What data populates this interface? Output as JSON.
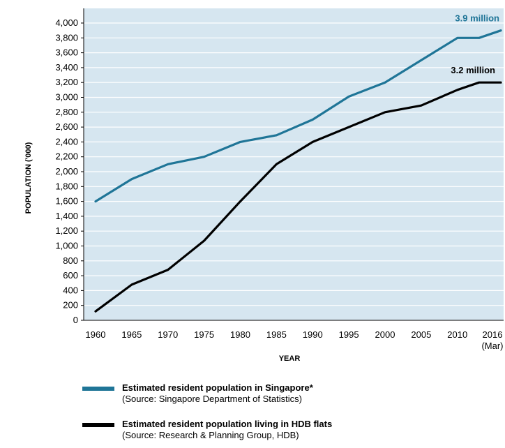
{
  "chart_data": {
    "type": "line",
    "title": "",
    "xlabel": "YEAR",
    "ylabel": "POPULATION ('000)",
    "ylim": [
      0,
      4000
    ],
    "y_ticks": [
      "0",
      "200",
      "400",
      "600",
      "800",
      "1,000",
      "1,200",
      "1,400",
      "1,600",
      "1,800",
      "2,000",
      "2,200",
      "2,400",
      "2,600",
      "2,800",
      "3,000",
      "3,200",
      "3,400",
      "3,600",
      "3,800",
      "4,000"
    ],
    "x_ticks": [
      {
        "label": "1960",
        "sub": ""
      },
      {
        "label": "1965",
        "sub": ""
      },
      {
        "label": "1970",
        "sub": ""
      },
      {
        "label": "1975",
        "sub": ""
      },
      {
        "label": "1980",
        "sub": ""
      },
      {
        "label": "1985",
        "sub": ""
      },
      {
        "label": "1990",
        "sub": ""
      },
      {
        "label": "1995",
        "sub": ""
      },
      {
        "label": "2000",
        "sub": ""
      },
      {
        "label": "2005",
        "sub": ""
      },
      {
        "label": "2010",
        "sub": ""
      },
      {
        "label": "2016",
        "sub": "(Mar)"
      }
    ],
    "x": [
      1960,
      1965,
      1970,
      1975,
      1980,
      1985,
      1990,
      1995,
      2000,
      2005,
      2010,
      2013,
      2016
    ],
    "grid": true,
    "background_color": "#d6e6f0",
    "series": [
      {
        "name": "Estimated resident population in Singapore*",
        "source": "(Source: Singapore Department of Statistics)",
        "color": "#1f7597",
        "values": [
          1600,
          1900,
          2100,
          2200,
          2400,
          2490,
          2700,
          3010,
          3200,
          3500,
          3800,
          3800,
          3900
        ],
        "end_label": "3.9 million"
      },
      {
        "name": "Estimated resident population living in HDB flats",
        "source": "(Source: Research & Planning Group, HDB)",
        "color": "#000000",
        "values": [
          120,
          480,
          680,
          1070,
          1600,
          2100,
          2400,
          2600,
          2800,
          2890,
          3100,
          3200,
          3200
        ],
        "end_label": "3.2 million"
      }
    ]
  }
}
